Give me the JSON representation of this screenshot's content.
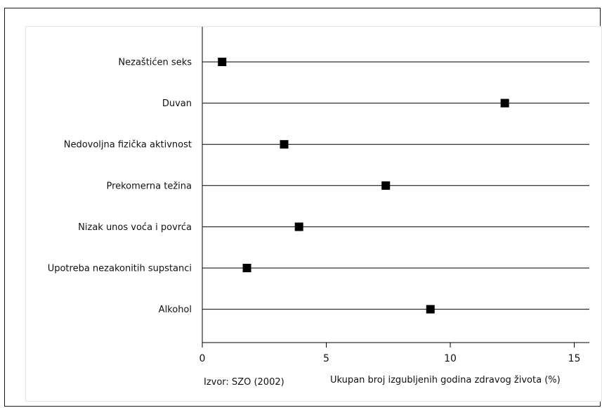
{
  "chart_data": {
    "type": "scatter",
    "categories": [
      "Nezaštićen seks",
      "Duvan",
      "Nedovoljna fizička aktivnost",
      "Prekomerna težina",
      "Nizak unos voća i povrća",
      "Upotreba nezakonitih supstanci",
      "Alkohol"
    ],
    "values": [
      0.8,
      12.2,
      3.3,
      7.4,
      3.9,
      1.8,
      9.2
    ],
    "xlim": [
      0,
      15
    ],
    "xticks": [
      "0",
      "5",
      "10",
      "15"
    ],
    "xlabel": "Ukupan broj izgubljenih godina zdravog života (%)",
    "source": "Izvor: SZO (2002)",
    "marker_color": "#000000",
    "grid": "horizontal"
  }
}
